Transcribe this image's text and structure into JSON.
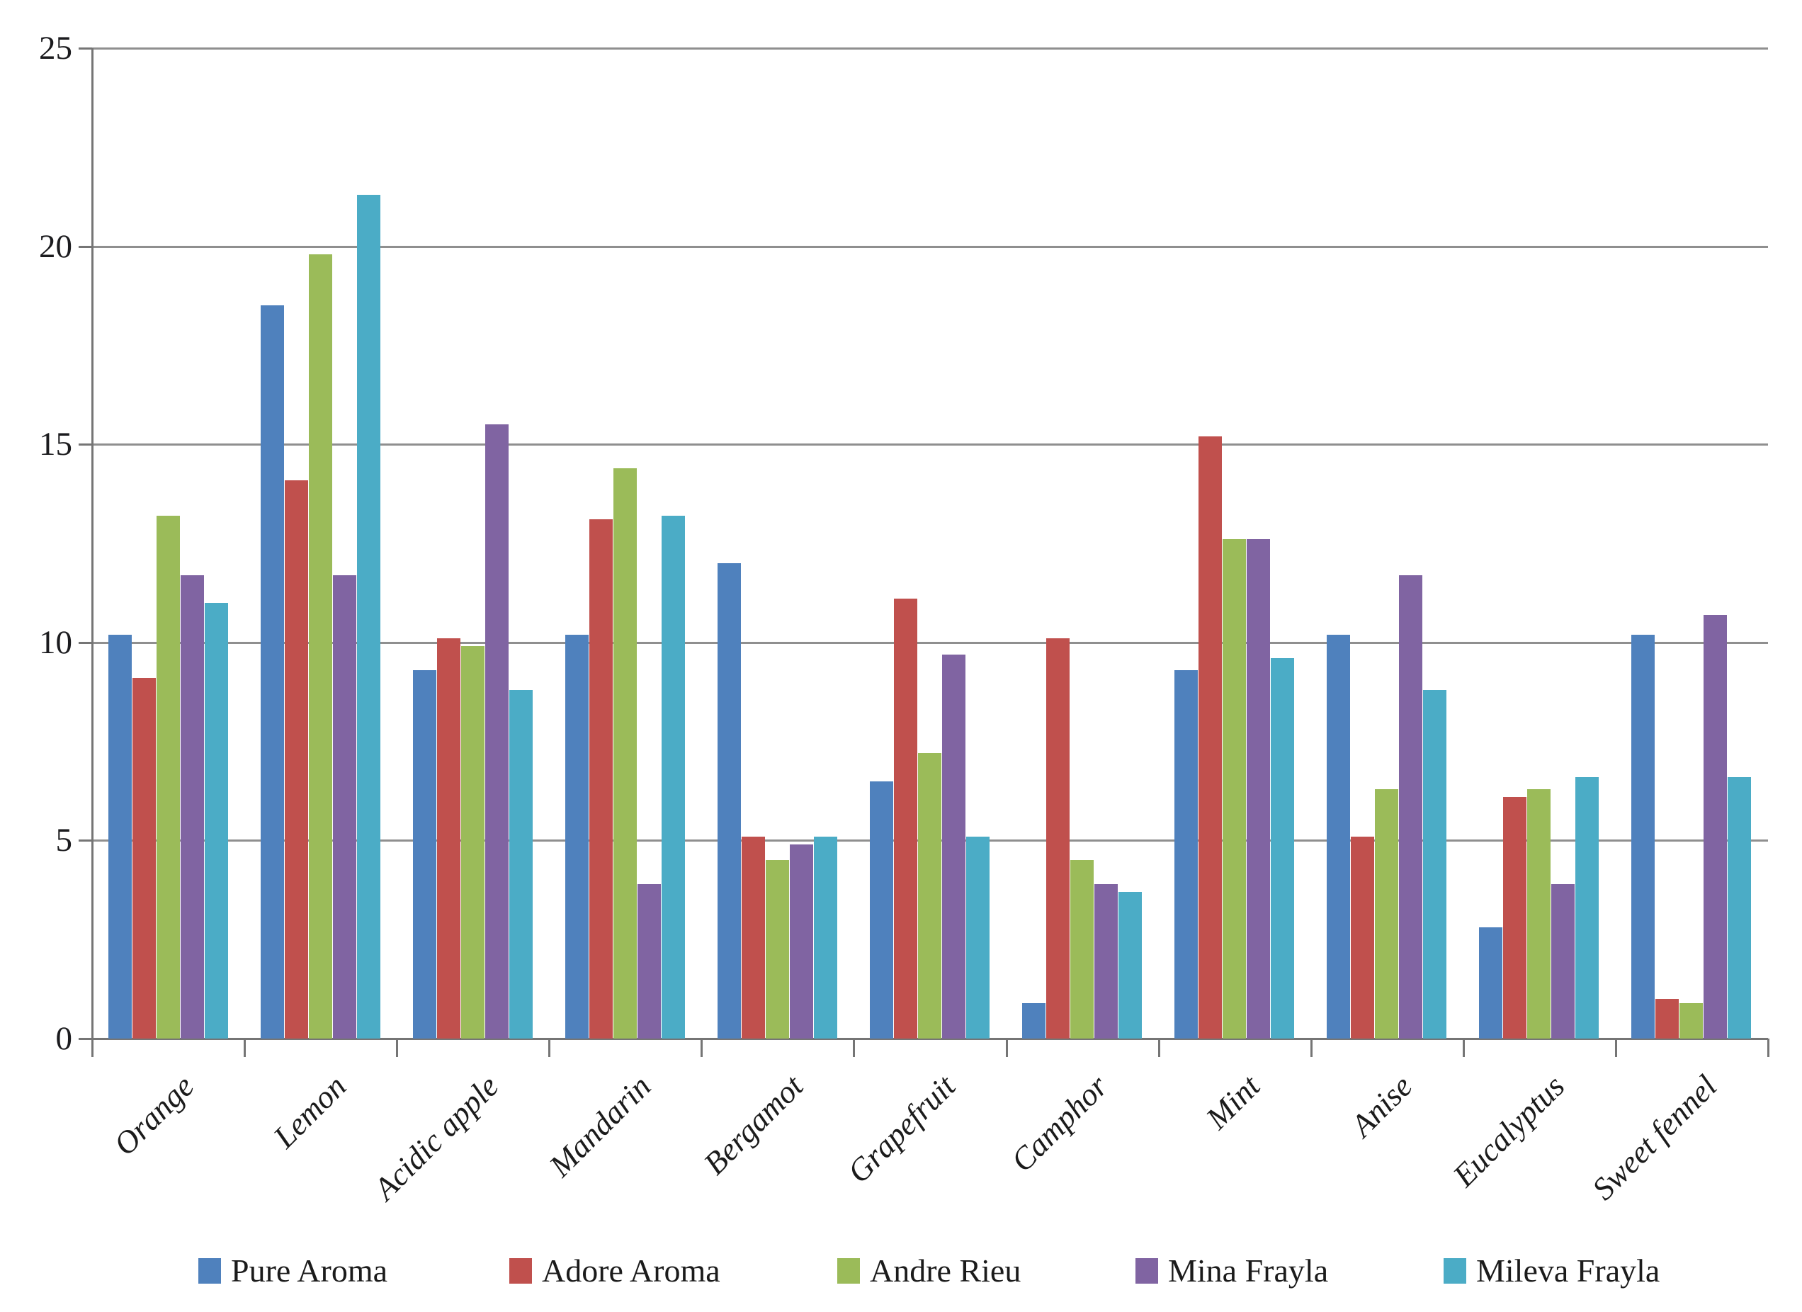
{
  "chart_data": {
    "type": "bar",
    "title": "",
    "xlabel": "",
    "ylabel": "",
    "ylim": [
      0,
      25
    ],
    "yticks": [
      0,
      5,
      10,
      15,
      20,
      25
    ],
    "grid": "horizontal",
    "legend_position": "bottom",
    "categories": [
      "Orange",
      "Lemon",
      "Acidic apple",
      "Mandarin",
      "Bergamot",
      "Grapefruit",
      "Camphor",
      "Mint",
      "Anise",
      "Eucalyptus",
      "Sweet fennel"
    ],
    "series": [
      {
        "name": "Pure Aroma",
        "color": "#4F81BD",
        "values": [
          10.2,
          18.5,
          9.3,
          10.2,
          12.0,
          6.5,
          0.9,
          9.3,
          10.2,
          2.8,
          10.2
        ]
      },
      {
        "name": "Adore Aroma",
        "color": "#C0504D",
        "values": [
          9.1,
          14.1,
          10.1,
          13.1,
          5.1,
          11.1,
          10.1,
          15.2,
          5.1,
          6.1,
          1.0
        ]
      },
      {
        "name": "Andre Rieu",
        "color": "#9BBB59",
        "values": [
          13.2,
          19.8,
          9.9,
          14.4,
          4.5,
          7.2,
          4.5,
          12.6,
          6.3,
          6.3,
          0.9
        ]
      },
      {
        "name": "Mina Frayla",
        "color": "#8064A2",
        "values": [
          11.7,
          11.7,
          15.5,
          3.9,
          4.9,
          9.7,
          3.9,
          12.6,
          11.7,
          3.9,
          10.7
        ]
      },
      {
        "name": "Mileva Frayla",
        "color": "#4BACC6",
        "values": [
          11.0,
          21.3,
          8.8,
          13.2,
          5.1,
          5.1,
          3.7,
          9.6,
          8.8,
          6.6,
          6.6
        ]
      }
    ]
  },
  "colors": {
    "background": "#ffffff",
    "gridline": "#8f8f8f",
    "axis": "#757575",
    "tick_label": "#1b1b1e",
    "category_label": "#1b1b1b",
    "legend_text": "#1b1b1b"
  }
}
